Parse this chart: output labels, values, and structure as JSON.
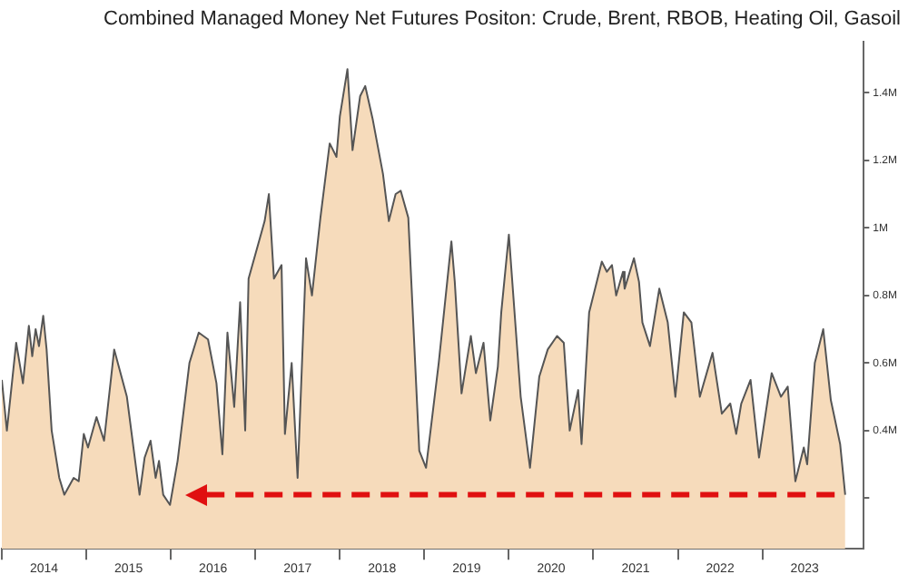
{
  "chart_data": {
    "type": "area",
    "title": "Combined Managed Money Net Futures Positon: Crude, Brent, RBOB, Heating Oil, Gasoil",
    "xlim": [
      2014,
      2024.2
    ],
    "xticks": [
      {
        "value": 2014,
        "label": null
      },
      {
        "value": 2014.5,
        "label": "2014"
      },
      {
        "value": 2015,
        "label": null
      },
      {
        "value": 2015.5,
        "label": "2015"
      },
      {
        "value": 2016,
        "label": null
      },
      {
        "value": 2016.5,
        "label": "2016"
      },
      {
        "value": 2017,
        "label": null
      },
      {
        "value": 2017.5,
        "label": "2017"
      },
      {
        "value": 2018,
        "label": null
      },
      {
        "value": 2018.5,
        "label": "2018"
      },
      {
        "value": 2019,
        "label": null
      },
      {
        "value": 2019.5,
        "label": "2019"
      },
      {
        "value": 2020,
        "label": null
      },
      {
        "value": 2020.5,
        "label": "2020"
      },
      {
        "value": 2021,
        "label": null
      },
      {
        "value": 2021.5,
        "label": "2021"
      },
      {
        "value": 2022,
        "label": null
      },
      {
        "value": 2022.5,
        "label": "2022"
      },
      {
        "value": 2023,
        "label": null
      },
      {
        "value": 2023.5,
        "label": "2023"
      }
    ],
    "ylim": [
      0.05,
      1.55
    ],
    "yticks": [
      {
        "value": 0.2,
        "label": null
      },
      {
        "value": 0.4,
        "label": "0.4M"
      },
      {
        "value": 0.6,
        "label": "0.6M"
      },
      {
        "value": 0.8,
        "label": "0.8M"
      },
      {
        "value": 1,
        "label": "1M"
      },
      {
        "value": 1.2,
        "label": "1.2M"
      },
      {
        "value": 1.4,
        "label": "1.4M"
      }
    ],
    "series": [
      {
        "color": "#f6dbbb",
        "x": [
          2014.0,
          2014.06,
          2014.17,
          2014.25,
          2014.32,
          2014.36,
          2014.4,
          2014.44,
          2014.49,
          2014.53,
          2014.59,
          2014.68,
          2014.74,
          2014.85,
          2014.91,
          2014.97,
          2015.02,
          2015.12,
          2015.21,
          2015.33,
          2015.48,
          2015.63,
          2015.69,
          2015.76,
          2015.82,
          2015.86,
          2015.91,
          2015.99,
          2016.08,
          2016.22,
          2016.33,
          2016.44,
          2016.54,
          2016.61,
          2016.67,
          2016.75,
          2016.82,
          2016.88,
          2016.92,
          2017.11,
          2017.16,
          2017.22,
          2017.31,
          2017.35,
          2017.43,
          2017.5,
          2017.6,
          2017.67,
          2017.77,
          2017.88,
          2017.96,
          2018.0,
          2018.09,
          2018.15,
          2018.24,
          2018.3,
          2018.39,
          2018.51,
          2018.58,
          2018.66,
          2018.72,
          2018.81,
          2018.94,
          2019.02,
          2019.17,
          2019.32,
          2019.36,
          2019.44,
          2019.55,
          2019.61,
          2019.7,
          2019.78,
          2019.87,
          2019.91,
          2020.0,
          2020.14,
          2020.25,
          2020.36,
          2020.46,
          2020.57,
          2020.65,
          2020.72,
          2020.82,
          2020.86,
          2020.95,
          2021.1,
          2021.16,
          2021.22,
          2021.27,
          2021.35,
          2021.37,
          2021.48,
          2021.54,
          2021.58,
          2021.67,
          2021.78,
          2021.88,
          2021.97,
          2022.07,
          2022.16,
          2022.26,
          2022.41,
          2022.52,
          2022.62,
          2022.69,
          2022.75,
          2022.86,
          2022.96,
          2023.11,
          2023.22,
          2023.3,
          2023.39,
          2023.49,
          2023.53,
          2023.62,
          2023.72,
          2023.81,
          2023.92,
          2023.98
        ],
        "values": [
          0.55,
          0.4,
          0.66,
          0.54,
          0.71,
          0.62,
          0.7,
          0.65,
          0.74,
          0.64,
          0.4,
          0.26,
          0.21,
          0.26,
          0.25,
          0.39,
          0.35,
          0.44,
          0.37,
          0.64,
          0.5,
          0.21,
          0.32,
          0.37,
          0.26,
          0.31,
          0.21,
          0.18,
          0.31,
          0.6,
          0.69,
          0.67,
          0.54,
          0.33,
          0.69,
          0.47,
          0.78,
          0.4,
          0.85,
          1.02,
          1.1,
          0.85,
          0.89,
          0.39,
          0.6,
          0.26,
          0.91,
          0.8,
          1.03,
          1.25,
          1.21,
          1.33,
          1.47,
          1.23,
          1.39,
          1.42,
          1.32,
          1.16,
          1.02,
          1.1,
          1.11,
          1.03,
          0.34,
          0.29,
          0.6,
          0.96,
          0.84,
          0.51,
          0.68,
          0.57,
          0.66,
          0.43,
          0.59,
          0.75,
          0.98,
          0.5,
          0.29,
          0.56,
          0.64,
          0.68,
          0.66,
          0.4,
          0.52,
          0.36,
          0.75,
          0.9,
          0.87,
          0.89,
          0.8,
          0.87,
          0.82,
          0.91,
          0.84,
          0.72,
          0.65,
          0.82,
          0.72,
          0.5,
          0.75,
          0.72,
          0.5,
          0.63,
          0.45,
          0.48,
          0.39,
          0.48,
          0.55,
          0.32,
          0.57,
          0.5,
          0.53,
          0.25,
          0.35,
          0.3,
          0.6,
          0.7,
          0.49,
          0.36,
          0.21
        ]
      }
    ],
    "ref_lines": [
      {
        "axis": "y",
        "value": 0.21,
        "color": "#e01010",
        "line_style": "dashed"
      }
    ]
  }
}
